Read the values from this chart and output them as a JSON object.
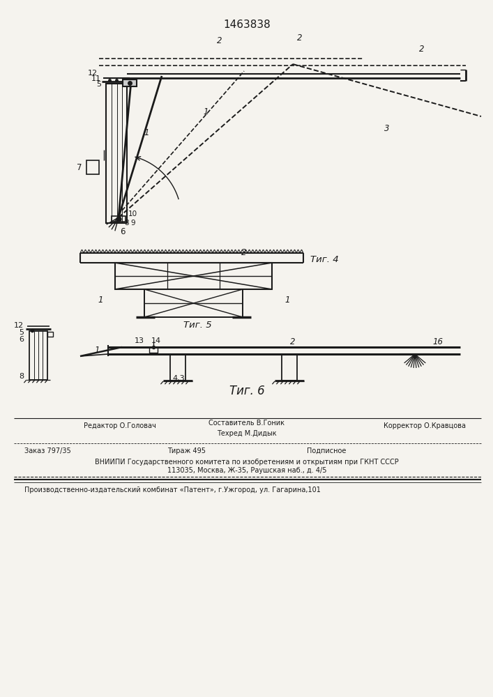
{
  "patent_number": "1463838",
  "bg_color": "#f5f3ee",
  "line_color": "#1a1a1a",
  "fig4_caption": "Τиг. 4",
  "fig5_caption": "Τиг. 5",
  "fig6_caption": "Τиг. 6",
  "footer_line1_col1": "Редактор О.Головач",
  "footer_line1_col2": "Составитель В.Гоник",
  "footer_line2_col2": "Техред М.Дидык",
  "footer_line1_col3": "Корректор О.Кравцова",
  "footer_order": "Заказ 797/35",
  "footer_copies": "Тираж 495",
  "footer_signed": "Подписное",
  "footer_vnipi": "ВНИИПИ Государственного комитета по изобретениям и открытиям при ГКНТ СССР",
  "footer_address": "113035, Москва, Ж-35, Раушская наб., д. 4/5",
  "footer_publisher": "Производственно-издательский комбинат «Патент», г.Ужгород, ул. Гагарина,101"
}
